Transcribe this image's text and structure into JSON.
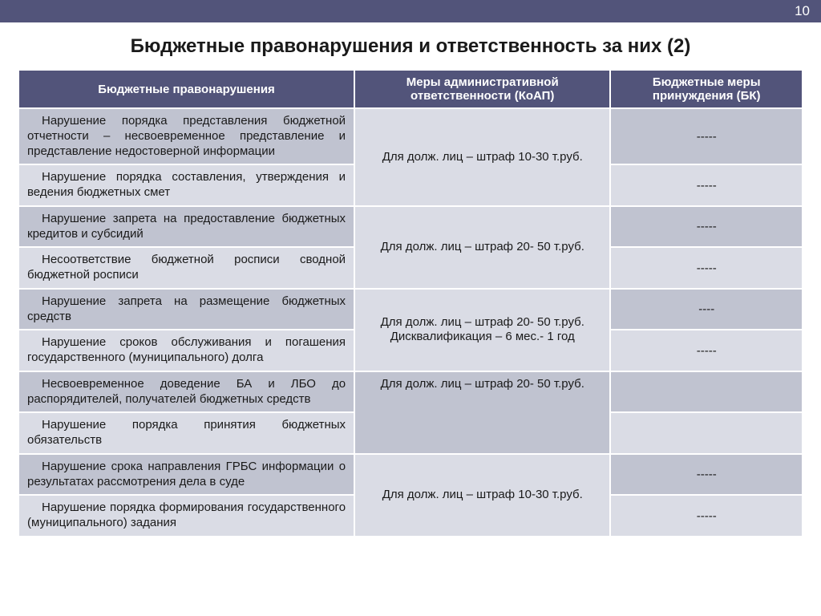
{
  "page_number": "10",
  "title": "Бюджетные правонарушения и ответственность за них (2)",
  "headers": {
    "violations": "Бюджетные правонарушения",
    "measures": "Меры административной ответственности  (КоАП)",
    "budget": "Бюджетные меры принуждения (БК)"
  },
  "groups": [
    {
      "measure": "Для долж. лиц – штраф 10-30 т.руб.",
      "rows": [
        {
          "v": "Нарушение порядка представления бюджетной отчетности – несвоевременное представление и представление недостоверной информации",
          "b": "-----"
        },
        {
          "v": "Нарушение порядка составления, утверждения и ведения бюджетных смет",
          "b": "-----"
        }
      ]
    },
    {
      "measure": "Для долж. лиц – штраф 20- 50 т.руб.",
      "rows": [
        {
          "v": "Нарушение запрета на предоставление бюджетных кредитов и субсидий",
          "b": "-----"
        },
        {
          "v": "Несоответствие бюджетной росписи сводной бюджетной росписи",
          "b": "-----"
        }
      ]
    },
    {
      "measure": "Для долж. лиц – штраф 20- 50 т.руб. Дисквалификация – 6 мес.- 1 год",
      "rows": [
        {
          "v": "Нарушение запрета на размещение бюджетных средств",
          "b": "----"
        },
        {
          "v": "Нарушение сроков обслуживания и погашения государственного (муниципального) долга",
          "b": "-----"
        }
      ]
    },
    {
      "measure": "Для долж. лиц – штраф 20- 50 т.руб.",
      "rows": [
        {
          "v": "Несвоевременное доведение БА и ЛБО до распорядителей, получателей бюджетных средств",
          "b": ""
        },
        {
          "v": "Нарушение порядка принятия бюджетных обязательств",
          "b": ""
        }
      ]
    },
    {
      "measure": "Для долж. лиц – штраф 10-30 т.руб.",
      "rows": [
        {
          "v": "Нарушение срока направления ГРБС информации о результатах рассмотрения дела в суде",
          "b": "-----"
        },
        {
          "v": "Нарушение порядка формирования государственного (муниципального) задания",
          "b": "-----"
        }
      ]
    }
  ],
  "colors": {
    "header_bg": "#52547a",
    "row_alt_a": "#c0c3d0",
    "row_alt_b": "#dadce5",
    "border": "#ffffff",
    "text": "#1a1a1a"
  }
}
